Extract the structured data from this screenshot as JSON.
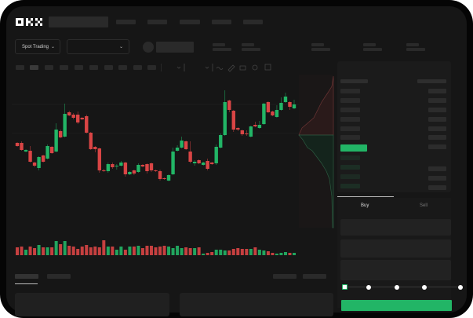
{
  "header": {
    "logo": "OKX"
  },
  "toolbar": {
    "market_type": "Spot Trading",
    "pair_select": "",
    "chevron": "chevron-down-icon"
  },
  "order_form": {
    "tabs": [
      {
        "label": "Buy",
        "active": true
      },
      {
        "label": "Sell",
        "active": false
      }
    ],
    "slider_percent": 0
  },
  "colors": {
    "up": "#22b566",
    "down": "#d94545",
    "background": "#161616",
    "frame": "#050505"
  },
  "chart_data": {
    "type": "candlestick",
    "candles": [
      [
        68,
        64,
        69,
        63
      ],
      [
        68,
        59,
        70,
        58
      ],
      [
        57,
        59,
        60,
        56
      ],
      [
        58,
        44,
        64,
        43
      ],
      [
        43,
        39,
        44,
        37
      ],
      [
        36,
        50,
        51,
        33
      ],
      [
        52,
        44,
        53,
        43
      ],
      [
        48,
        64,
        66,
        47
      ],
      [
        63,
        55,
        64,
        54
      ],
      [
        57,
        85,
        93,
        56
      ],
      [
        83,
        75,
        85,
        74
      ],
      [
        76,
        105,
        118,
        75
      ],
      [
        107,
        103,
        109,
        102
      ],
      [
        104,
        100,
        106,
        98
      ],
      [
        104,
        94,
        108,
        92
      ],
      [
        100,
        98,
        101,
        97
      ],
      [
        102,
        81,
        104,
        80
      ],
      [
        81,
        60,
        82,
        59
      ],
      [
        63,
        60,
        64,
        56
      ],
      [
        61,
        33,
        62,
        30
      ],
      [
        33,
        32,
        35,
        31
      ],
      [
        32,
        41,
        43,
        30
      ],
      [
        41,
        37,
        43,
        35
      ],
      [
        38,
        39,
        41,
        34
      ],
      [
        39,
        43,
        45,
        38
      ],
      [
        43,
        28,
        44,
        25
      ],
      [
        28,
        31,
        32,
        27
      ],
      [
        33,
        29,
        34,
        27
      ],
      [
        31,
        40,
        42,
        30
      ],
      [
        40,
        38,
        41,
        37
      ],
      [
        41,
        32,
        42,
        29
      ],
      [
        42,
        33,
        43,
        31
      ],
      [
        33,
        32,
        34,
        31
      ],
      [
        32,
        22,
        34,
        20
      ],
      [
        23,
        22,
        24,
        21
      ],
      [
        20,
        27,
        28,
        19
      ],
      [
        28,
        57,
        62,
        27
      ],
      [
        58,
        62,
        65,
        57
      ],
      [
        62,
        71,
        76,
        61
      ],
      [
        70,
        60,
        71,
        59
      ],
      [
        57,
        44,
        70,
        42
      ],
      [
        42,
        44,
        46,
        39
      ],
      [
        46,
        42,
        47,
        41
      ],
      [
        40,
        43,
        44,
        39
      ],
      [
        45,
        35,
        48,
        33
      ],
      [
        43,
        41,
        44,
        40
      ],
      [
        42,
        63,
        66,
        40
      ],
      [
        62,
        78,
        80,
        61
      ],
      [
        78,
        120,
        135,
        77
      ],
      [
        122,
        110,
        123,
        107
      ],
      [
        109,
        85,
        110,
        82
      ],
      [
        87,
        85,
        88,
        83
      ],
      [
        84,
        79,
        85,
        77
      ],
      [
        80,
        79,
        84,
        77
      ],
      [
        76,
        89,
        90,
        75
      ],
      [
        91,
        89,
        95,
        88
      ],
      [
        87,
        91,
        96,
        86
      ],
      [
        92,
        118,
        119,
        91
      ],
      [
        120,
        107,
        121,
        106
      ],
      [
        108,
        103,
        109,
        102
      ],
      [
        101,
        110,
        116,
        100
      ],
      [
        110,
        119,
        126,
        109
      ],
      [
        120,
        127,
        132,
        119
      ],
      [
        120,
        114,
        121,
        110
      ],
      [
        112,
        117,
        123,
        111
      ]
    ],
    "volumes": [
      10,
      11,
      7,
      11,
      9,
      13,
      10,
      10,
      10,
      18,
      14,
      18,
      12,
      11,
      8,
      11,
      13,
      10,
      11,
      10,
      19,
      11,
      11,
      7,
      11,
      7,
      11,
      11,
      12,
      9,
      12,
      12,
      10,
      11,
      12,
      11,
      9,
      12,
      9,
      10,
      9,
      9,
      10,
      2,
      3,
      4,
      7,
      7,
      6,
      6,
      8,
      9,
      8,
      8,
      8,
      10,
      7,
      6,
      5,
      3,
      2,
      3,
      4,
      3,
      3
    ]
  }
}
